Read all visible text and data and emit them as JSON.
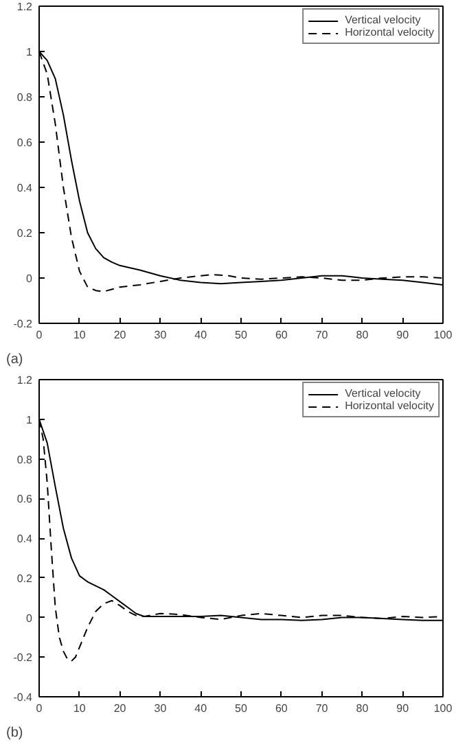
{
  "chart_data": [
    {
      "type": "line",
      "annotations": [
        "(a)"
      ],
      "legend": "top right",
      "grid": false,
      "xlim": [
        0,
        100
      ],
      "xticks": [
        0,
        10,
        20,
        30,
        40,
        50,
        60,
        70,
        80,
        90,
        100
      ],
      "ylim": [
        -0.2,
        1.2
      ],
      "yticks": [
        -0.2,
        0,
        0.2,
        0.4,
        0.6,
        0.8,
        1,
        1.2
      ],
      "series": [
        {
          "name": "Vertical velocity",
          "color": "#000000",
          "line_style": "solid",
          "x": [
            0,
            2,
            4,
            6,
            8,
            10,
            12,
            14,
            16,
            18,
            20,
            25,
            30,
            35,
            40,
            45,
            50,
            55,
            60,
            65,
            70,
            75,
            80,
            85,
            90,
            95,
            100
          ],
          "values": [
            1,
            0.96,
            0.88,
            0.72,
            0.52,
            0.34,
            0.2,
            0.13,
            0.09,
            0.07,
            0.055,
            0.035,
            0.01,
            -0.01,
            -0.02,
            -0.025,
            -0.02,
            -0.015,
            -0.01,
            0.0,
            0.01,
            0.01,
            0.0,
            -0.005,
            -0.01,
            -0.02,
            -0.03
          ]
        },
        {
          "name": "Horizontal velocity",
          "color": "#000000",
          "line_style": "dashed",
          "x": [
            0,
            2,
            4,
            6,
            8,
            10,
            12,
            14,
            16,
            18,
            20,
            25,
            30,
            35,
            40,
            43,
            47,
            50,
            55,
            60,
            65,
            70,
            75,
            80,
            85,
            90,
            95,
            100
          ],
          "values": [
            1,
            0.9,
            0.68,
            0.4,
            0.18,
            0.03,
            -0.04,
            -0.055,
            -0.06,
            -0.05,
            -0.04,
            -0.03,
            -0.015,
            0.0,
            0.01,
            0.015,
            0.01,
            0.0,
            -0.005,
            0.0,
            0.005,
            0.0,
            -0.01,
            -0.01,
            0.0,
            0.005,
            0.005,
            0.0
          ]
        }
      ]
    },
    {
      "type": "line",
      "annotations": [
        "(b)"
      ],
      "legend": "top right",
      "grid": false,
      "xlim": [
        0,
        100
      ],
      "xticks": [
        0,
        10,
        20,
        30,
        40,
        50,
        60,
        70,
        80,
        90,
        100
      ],
      "ylim": [
        -0.4,
        1.2
      ],
      "yticks": [
        -0.4,
        -0.2,
        0,
        0.2,
        0.4,
        0.6,
        0.8,
        1,
        1.2
      ],
      "series": [
        {
          "name": "Vertical velocity",
          "color": "#000000",
          "line_style": "solid",
          "x": [
            0,
            2,
            4,
            6,
            8,
            10,
            12,
            14,
            16,
            18,
            20,
            22,
            24,
            26,
            30,
            40,
            45,
            50,
            55,
            60,
            65,
            70,
            75,
            80,
            85,
            90,
            95,
            100
          ],
          "values": [
            1,
            0.88,
            0.66,
            0.45,
            0.3,
            0.21,
            0.18,
            0.16,
            0.14,
            0.11,
            0.08,
            0.05,
            0.02,
            0.005,
            0.005,
            0.005,
            0.01,
            0.0,
            -0.01,
            -0.01,
            -0.015,
            -0.01,
            0.0,
            0.0,
            -0.005,
            -0.01,
            -0.015,
            -0.015
          ]
        },
        {
          "name": "Horizontal velocity",
          "color": "#000000",
          "line_style": "dashed",
          "x": [
            0,
            1,
            2,
            3,
            4,
            5,
            6,
            7,
            8,
            9,
            10,
            12,
            14,
            16,
            18,
            20,
            22,
            24,
            26,
            30,
            35,
            40,
            45,
            50,
            55,
            60,
            65,
            70,
            75,
            80,
            85,
            90,
            95,
            100
          ],
          "values": [
            1,
            0.9,
            0.68,
            0.35,
            0.05,
            -0.1,
            -0.17,
            -0.21,
            -0.22,
            -0.2,
            -0.15,
            -0.05,
            0.03,
            0.07,
            0.085,
            0.06,
            0.03,
            0.01,
            0.005,
            0.02,
            0.015,
            0.0,
            -0.01,
            0.01,
            0.02,
            0.01,
            0.0,
            0.01,
            0.01,
            0.0,
            -0.005,
            0.005,
            0.0,
            0.005
          ]
        }
      ]
    }
  ]
}
